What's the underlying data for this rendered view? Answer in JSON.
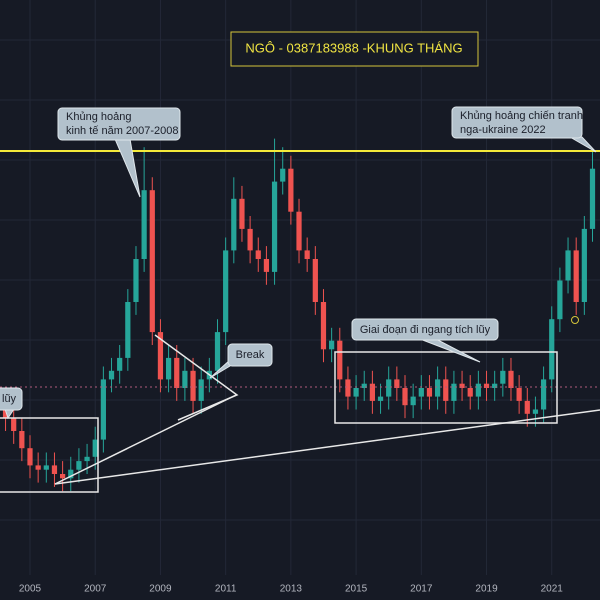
{
  "chart_data": {
    "type": "candlestick",
    "title": "NGÔ - 0387183988 -KHUNG THÁNG",
    "annotations": [
      [
        "Khủng hoảng",
        "kinh tế năm 2007-2008"
      ],
      [
        "Khủng hoảng chiến tranh",
        "nga-ukraine 2022"
      ],
      [
        "Break"
      ],
      [
        "Giai đoạn đi ngang tích lũy"
      ],
      [
        "lũy"
      ]
    ],
    "x": [
      2004.25,
      2004.5,
      2004.75,
      2005,
      2005.25,
      2005.5,
      2005.75,
      2006,
      2006.25,
      2006.5,
      2006.75,
      2007,
      2007.25,
      2007.5,
      2007.75,
      2008,
      2008.25,
      2008.5,
      2008.75,
      2009,
      2009.25,
      2009.5,
      2009.75,
      2010,
      2010.25,
      2010.5,
      2010.75,
      2011,
      2011.25,
      2011.5,
      2011.75,
      2012,
      2012.25,
      2012.5,
      2012.75,
      2013,
      2013.25,
      2013.5,
      2013.75,
      2014,
      2014.25,
      2014.5,
      2014.75,
      2015,
      2015.25,
      2015.5,
      2015.75,
      2016,
      2016.25,
      2016.5,
      2016.75,
      2017,
      2017.25,
      2017.5,
      2017.75,
      2018,
      2018.25,
      2018.5,
      2018.75,
      2019,
      2019.25,
      2019.5,
      2019.75,
      2020,
      2020.25,
      2020.5,
      2020.75,
      2021,
      2021.25,
      2021.5,
      2021.75,
      2022,
      2022.25
    ],
    "open": [
      35,
      33,
      30,
      26,
      22,
      21,
      22,
      20,
      19,
      21,
      23,
      24,
      28,
      42,
      44,
      47,
      60,
      70,
      86,
      53,
      42,
      47,
      40,
      44,
      37,
      42,
      44,
      53,
      72,
      84,
      77,
      72,
      70,
      67,
      88,
      91,
      81,
      72,
      70,
      60,
      49,
      51,
      42,
      38,
      40,
      41,
      37,
      38,
      42,
      40,
      36,
      38,
      40,
      38,
      42,
      37,
      41,
      40,
      38,
      41,
      40,
      41,
      44,
      40,
      37,
      34,
      35,
      42,
      56,
      65,
      72,
      60,
      77
    ],
    "high": [
      38,
      36,
      33,
      29,
      25,
      25,
      25,
      23,
      24,
      26,
      27,
      31,
      45,
      47,
      50,
      63,
      73,
      96,
      89,
      56,
      50,
      50,
      47,
      47,
      45,
      47,
      56,
      75,
      89,
      87,
      80,
      75,
      73,
      98,
      96,
      94,
      84,
      75,
      73,
      63,
      54,
      54,
      45,
      43,
      44,
      44,
      41,
      45,
      45,
      43,
      41,
      43,
      43,
      45,
      45,
      44,
      44,
      43,
      44,
      44,
      44,
      47,
      47,
      43,
      40,
      38,
      45,
      59,
      68,
      75,
      75,
      80,
      95
    ],
    "low": [
      30,
      27,
      23,
      19,
      18,
      18,
      17,
      16,
      16,
      18,
      20,
      21,
      25,
      39,
      41,
      44,
      57,
      67,
      50,
      39,
      39,
      37,
      37,
      34,
      34,
      39,
      41,
      50,
      69,
      74,
      69,
      67,
      64,
      64,
      85,
      78,
      69,
      67,
      57,
      46,
      46,
      39,
      35,
      35,
      37,
      34,
      34,
      35,
      37,
      33,
      33,
      35,
      35,
      35,
      34,
      34,
      37,
      35,
      35,
      37,
      37,
      38,
      37,
      34,
      31,
      31,
      32,
      39,
      53,
      62,
      57,
      57,
      74
    ],
    "close": [
      33,
      30,
      26,
      22,
      21,
      22,
      20,
      19,
      21,
      23,
      24,
      28,
      42,
      44,
      47,
      60,
      70,
      86,
      53,
      42,
      47,
      40,
      44,
      37,
      42,
      44,
      53,
      72,
      84,
      77,
      72,
      70,
      67,
      88,
      91,
      81,
      72,
      70,
      60,
      49,
      51,
      42,
      38,
      40,
      41,
      37,
      38,
      42,
      40,
      36,
      38,
      40,
      38,
      42,
      37,
      41,
      40,
      38,
      41,
      40,
      41,
      44,
      40,
      37,
      34,
      35,
      42,
      56,
      65,
      72,
      60,
      77,
      91
    ],
    "up_color": "#26a69a",
    "down_color": "#ef5350",
    "xlim": [
      2004.08,
      2022.48
    ],
    "xticks": [
      2005,
      2007,
      2009,
      2011,
      2013,
      2015,
      2017,
      2019,
      2021
    ],
    "ylim": [
      0,
      100
    ],
    "grid": true
  }
}
